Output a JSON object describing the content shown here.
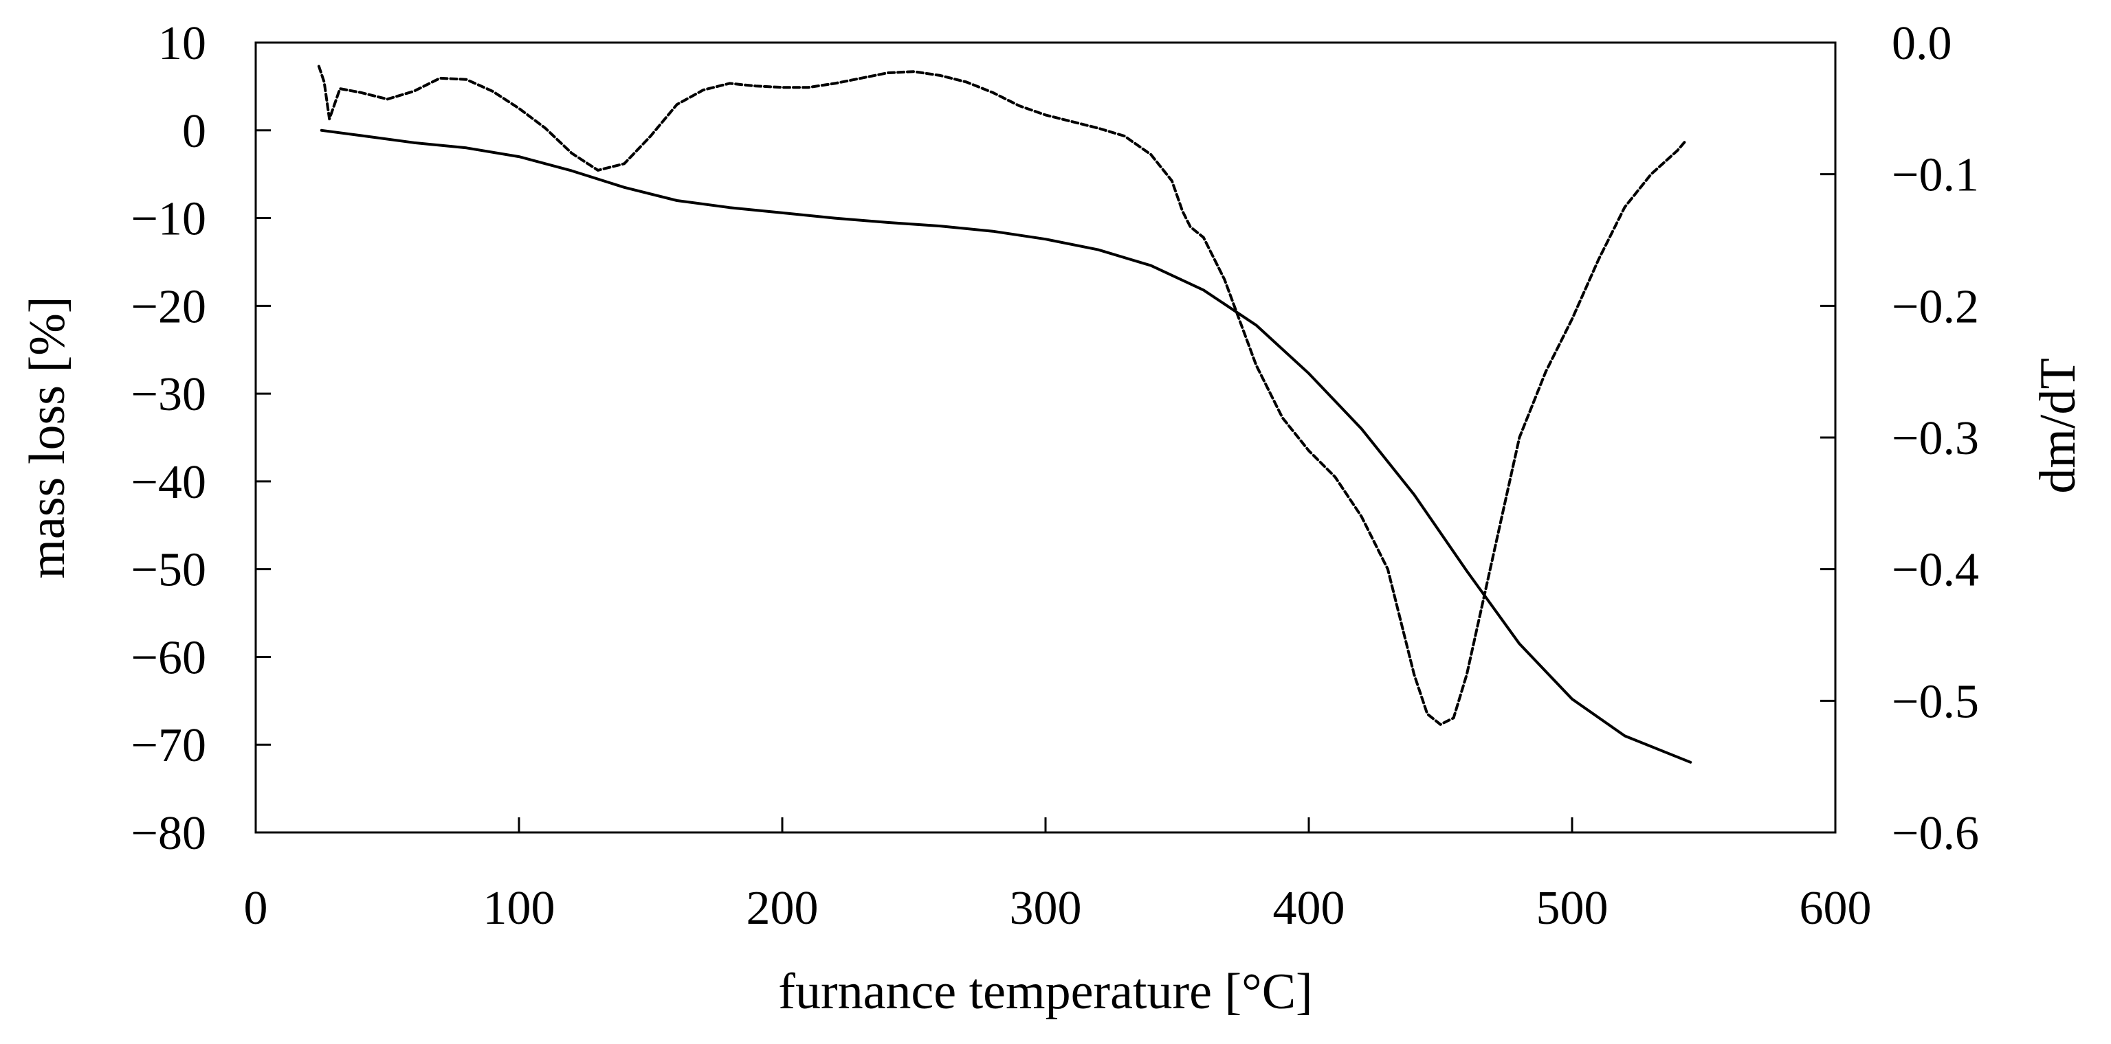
{
  "chart_data": {
    "type": "line",
    "title": "",
    "xlabel": "furnance temperature [°C]",
    "ylabel": "mass loss [%]",
    "y2label": "dm/dT",
    "xlim": [
      0,
      600
    ],
    "ylim": [
      -80,
      10
    ],
    "y2lim": [
      -0.6,
      0.0
    ],
    "x_ticks": [
      0,
      100,
      200,
      300,
      400,
      500,
      600
    ],
    "y_ticks": [
      10,
      0,
      -10,
      -20,
      -30,
      -40,
      -50,
      -60,
      -70,
      -80
    ],
    "y2_ticks": [
      0.0,
      -0.1,
      -0.2,
      -0.3,
      -0.4,
      -0.5,
      -0.6
    ],
    "x_tick_labels": [
      "0",
      "100",
      "200",
      "300",
      "400",
      "500",
      "600"
    ],
    "y_tick_labels": [
      "10",
      "0",
      "−10",
      "−20",
      "−30",
      "−40",
      "−50",
      "−60",
      "−70",
      "−80"
    ],
    "y2_tick_labels": [
      "0.0",
      "−0.1",
      "−0.2",
      "−0.3",
      "−0.4",
      "−0.5",
      "−0.6"
    ],
    "grid": false,
    "series": [
      {
        "name": "mass loss",
        "axis": "left",
        "style": "solid",
        "x": [
          25,
          40,
          60,
          80,
          100,
          120,
          140,
          160,
          180,
          200,
          220,
          240,
          260,
          280,
          300,
          320,
          340,
          360,
          380,
          400,
          420,
          440,
          460,
          480,
          500,
          520,
          545
        ],
        "y": [
          0,
          -0.6,
          -1.4,
          -2,
          -3,
          -4.6,
          -6.5,
          -8,
          -8.8,
          -9.4,
          -10,
          -10.5,
          -10.9,
          -11.5,
          -12.4,
          -13.6,
          -15.4,
          -18.2,
          -22.2,
          -27.7,
          -34,
          -41.5,
          -50.2,
          -58.5,
          -64.8,
          -69,
          -72
        ]
      },
      {
        "name": "dm/dT",
        "axis": "right",
        "style": "dashed",
        "x": [
          24,
          26,
          28,
          32,
          40,
          50,
          60,
          70,
          80,
          90,
          100,
          110,
          120,
          130,
          140,
          150,
          160,
          170,
          180,
          190,
          200,
          210,
          220,
          230,
          240,
          250,
          260,
          270,
          280,
          290,
          300,
          310,
          320,
          330,
          340,
          348,
          352,
          355,
          360,
          368,
          380,
          390,
          400,
          410,
          420,
          430,
          440,
          445,
          450,
          455,
          460,
          470,
          480,
          490,
          500,
          510,
          520,
          530,
          540,
          543
        ],
        "y": [
          -0.018,
          -0.03,
          -0.058,
          -0.035,
          -0.038,
          -0.043,
          -0.037,
          -0.027,
          -0.028,
          -0.037,
          -0.05,
          -0.065,
          -0.084,
          -0.097,
          -0.092,
          -0.071,
          -0.047,
          -0.036,
          -0.031,
          -0.033,
          -0.034,
          -0.034,
          -0.031,
          -0.027,
          -0.023,
          -0.022,
          -0.025,
          -0.03,
          -0.038,
          -0.048,
          -0.055,
          -0.06,
          -0.065,
          -0.071,
          -0.085,
          -0.105,
          -0.128,
          -0.14,
          -0.148,
          -0.18,
          -0.245,
          -0.285,
          -0.31,
          -0.33,
          -0.36,
          -0.4,
          -0.48,
          -0.51,
          -0.518,
          -0.513,
          -0.48,
          -0.39,
          -0.3,
          -0.25,
          -0.21,
          -0.165,
          -0.125,
          -0.1,
          -0.082,
          -0.075
        ]
      }
    ]
  }
}
